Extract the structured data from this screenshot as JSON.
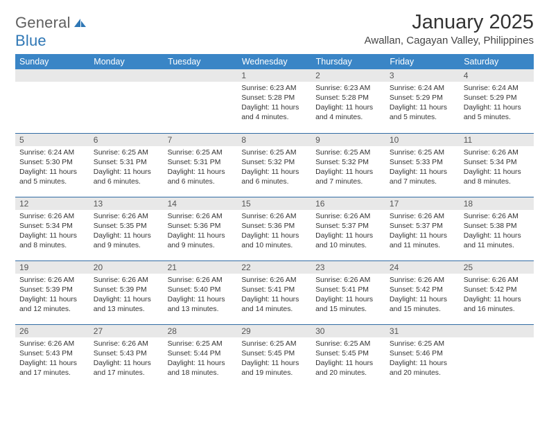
{
  "brand": {
    "word1": "General",
    "word2": "Blue"
  },
  "title": "January 2025",
  "location": "Awallan, Cagayan Valley, Philippines",
  "columns": [
    "Sunday",
    "Monday",
    "Tuesday",
    "Wednesday",
    "Thursday",
    "Friday",
    "Saturday"
  ],
  "colors": {
    "header_bg": "#3a85c6",
    "header_text": "#ffffff",
    "daynum_bg": "#e8e8e8",
    "rule": "#2f6aa3",
    "brand_gray": "#5f5f5f",
    "brand_blue": "#2f77b5"
  },
  "weeks": [
    [
      null,
      null,
      null,
      {
        "n": "1",
        "sr": "6:23 AM",
        "ss": "5:28 PM",
        "dl": "11 hours and 4 minutes."
      },
      {
        "n": "2",
        "sr": "6:23 AM",
        "ss": "5:28 PM",
        "dl": "11 hours and 4 minutes."
      },
      {
        "n": "3",
        "sr": "6:24 AM",
        "ss": "5:29 PM",
        "dl": "11 hours and 5 minutes."
      },
      {
        "n": "4",
        "sr": "6:24 AM",
        "ss": "5:29 PM",
        "dl": "11 hours and 5 minutes."
      }
    ],
    [
      {
        "n": "5",
        "sr": "6:24 AM",
        "ss": "5:30 PM",
        "dl": "11 hours and 5 minutes."
      },
      {
        "n": "6",
        "sr": "6:25 AM",
        "ss": "5:31 PM",
        "dl": "11 hours and 6 minutes."
      },
      {
        "n": "7",
        "sr": "6:25 AM",
        "ss": "5:31 PM",
        "dl": "11 hours and 6 minutes."
      },
      {
        "n": "8",
        "sr": "6:25 AM",
        "ss": "5:32 PM",
        "dl": "11 hours and 6 minutes."
      },
      {
        "n": "9",
        "sr": "6:25 AM",
        "ss": "5:32 PM",
        "dl": "11 hours and 7 minutes."
      },
      {
        "n": "10",
        "sr": "6:25 AM",
        "ss": "5:33 PM",
        "dl": "11 hours and 7 minutes."
      },
      {
        "n": "11",
        "sr": "6:26 AM",
        "ss": "5:34 PM",
        "dl": "11 hours and 8 minutes."
      }
    ],
    [
      {
        "n": "12",
        "sr": "6:26 AM",
        "ss": "5:34 PM",
        "dl": "11 hours and 8 minutes."
      },
      {
        "n": "13",
        "sr": "6:26 AM",
        "ss": "5:35 PM",
        "dl": "11 hours and 9 minutes."
      },
      {
        "n": "14",
        "sr": "6:26 AM",
        "ss": "5:36 PM",
        "dl": "11 hours and 9 minutes."
      },
      {
        "n": "15",
        "sr": "6:26 AM",
        "ss": "5:36 PM",
        "dl": "11 hours and 10 minutes."
      },
      {
        "n": "16",
        "sr": "6:26 AM",
        "ss": "5:37 PM",
        "dl": "11 hours and 10 minutes."
      },
      {
        "n": "17",
        "sr": "6:26 AM",
        "ss": "5:37 PM",
        "dl": "11 hours and 11 minutes."
      },
      {
        "n": "18",
        "sr": "6:26 AM",
        "ss": "5:38 PM",
        "dl": "11 hours and 11 minutes."
      }
    ],
    [
      {
        "n": "19",
        "sr": "6:26 AM",
        "ss": "5:39 PM",
        "dl": "11 hours and 12 minutes."
      },
      {
        "n": "20",
        "sr": "6:26 AM",
        "ss": "5:39 PM",
        "dl": "11 hours and 13 minutes."
      },
      {
        "n": "21",
        "sr": "6:26 AM",
        "ss": "5:40 PM",
        "dl": "11 hours and 13 minutes."
      },
      {
        "n": "22",
        "sr": "6:26 AM",
        "ss": "5:41 PM",
        "dl": "11 hours and 14 minutes."
      },
      {
        "n": "23",
        "sr": "6:26 AM",
        "ss": "5:41 PM",
        "dl": "11 hours and 15 minutes."
      },
      {
        "n": "24",
        "sr": "6:26 AM",
        "ss": "5:42 PM",
        "dl": "11 hours and 15 minutes."
      },
      {
        "n": "25",
        "sr": "6:26 AM",
        "ss": "5:42 PM",
        "dl": "11 hours and 16 minutes."
      }
    ],
    [
      {
        "n": "26",
        "sr": "6:26 AM",
        "ss": "5:43 PM",
        "dl": "11 hours and 17 minutes."
      },
      {
        "n": "27",
        "sr": "6:26 AM",
        "ss": "5:43 PM",
        "dl": "11 hours and 17 minutes."
      },
      {
        "n": "28",
        "sr": "6:25 AM",
        "ss": "5:44 PM",
        "dl": "11 hours and 18 minutes."
      },
      {
        "n": "29",
        "sr": "6:25 AM",
        "ss": "5:45 PM",
        "dl": "11 hours and 19 minutes."
      },
      {
        "n": "30",
        "sr": "6:25 AM",
        "ss": "5:45 PM",
        "dl": "11 hours and 20 minutes."
      },
      {
        "n": "31",
        "sr": "6:25 AM",
        "ss": "5:46 PM",
        "dl": "11 hours and 20 minutes."
      },
      null
    ]
  ],
  "labels": {
    "sunrise": "Sunrise:",
    "sunset": "Sunset:",
    "daylight": "Daylight:"
  }
}
